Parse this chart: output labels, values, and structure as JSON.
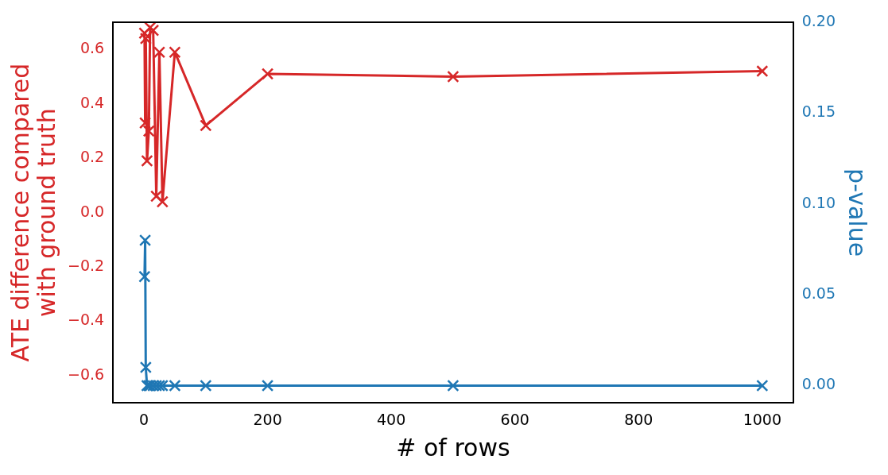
{
  "chart_data": {
    "type": "line",
    "xlabel": "# of rows",
    "ylabel": "ATE difference compared\nwith ground truth",
    "y2label": "p-value",
    "x": [
      1,
      2,
      3,
      5,
      8,
      10,
      15,
      20,
      25,
      30,
      50,
      100,
      200,
      500,
      1000
    ],
    "series": [
      {
        "color": "#d62728",
        "values": [
          0.66,
          0.33,
          0.64,
          0.19,
          0.3,
          0.68,
          0.67,
          0.06,
          0.59,
          0.04,
          0.59,
          0.32,
          0.51,
          0.5,
          0.52
        ]
      },
      {
        "color": "#1f77b4",
        "axis": "y2",
        "values": [
          0.06,
          0.08,
          0.01,
          0,
          0,
          0,
          0,
          0,
          0,
          0,
          0,
          0,
          0,
          0,
          0
        ]
      }
    ],
    "xlim": [
      -50,
      1050
    ],
    "xticks": [
      0,
      200,
      400,
      600,
      800,
      1000
    ],
    "ylim": [
      -0.7,
      0.7
    ],
    "yticks": [
      {
        "value": -0.6,
        "label": "−0.6"
      },
      {
        "value": -0.4,
        "label": "−0.4"
      },
      {
        "value": -0.2,
        "label": "−0.2"
      },
      {
        "value": 0,
        "label": "0.0"
      },
      {
        "value": 0.2,
        "label": "0.2"
      },
      {
        "value": 0.4,
        "label": "0.4"
      },
      {
        "value": 0.6,
        "label": "0.6"
      }
    ],
    "y2lim": [
      -0.0095,
      0.2
    ],
    "y2ticks": [
      {
        "value": 0,
        "label": "0.00"
      },
      {
        "value": 0.05,
        "label": "0.05"
      },
      {
        "value": 0.1,
        "label": "0.10"
      },
      {
        "value": 0.15,
        "label": "0.15"
      },
      {
        "value": 0.2,
        "label": "0.20"
      }
    ],
    "marker": "cross",
    "line_style": "solid",
    "grid": false,
    "legend": false
  }
}
